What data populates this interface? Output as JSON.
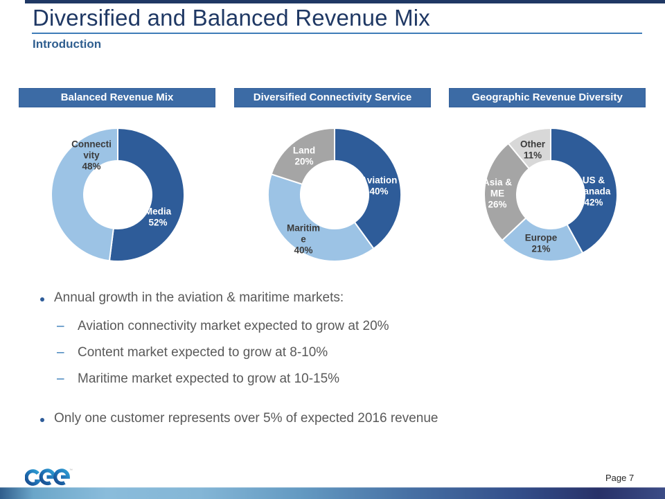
{
  "slide": {
    "title": "Diversified and Balanced Revenue Mix",
    "subtitle": "Introduction",
    "page_label": "Page 7",
    "logo_text": "Gee",
    "trademark": "™"
  },
  "panel_headers": [
    "Balanced Revenue Mix",
    "Diversified Connectivity Service",
    "Geographic Revenue Diversity"
  ],
  "bullets": {
    "dash_marker": "–",
    "b1": "Annual growth in the aviation & maritime markets:",
    "b1_sub": [
      "Aviation connectivity market expected to grow at 20%",
      "Content market expected to grow at 8-10%",
      "Maritime market expected to grow at 10-15%"
    ],
    "b2": "Only one customer represents over 5% of expected 2016 revenue"
  },
  "colors": {
    "title": "#1F3864",
    "subtitle": "#2F5E8F",
    "underline": "#3E7CB8",
    "header_bg": "#3C6BA5",
    "body_text": "#595959",
    "bullet_marker": "#2E5C99",
    "dark_blue": "#2E5C99",
    "light_blue": "#9CC3E5",
    "gray": "#A5A5A5",
    "light_gray": "#D8D8D8",
    "dark_label": "#3B3B3B"
  },
  "chart_data": [
    {
      "type": "pie",
      "donut": true,
      "title": "Balanced Revenue Mix",
      "legend_position": "none",
      "slices": [
        {
          "name": "Media",
          "value": 52,
          "color": "#2E5C99",
          "label_lines": [
            "Media",
            "52%"
          ],
          "label_color": "#FFFFFF",
          "label_pos": [
            58,
            32
          ]
        },
        {
          "name": "Connectivity",
          "value": 48,
          "color": "#9CC3E5",
          "label_lines": [
            "Connecti",
            "vity",
            "48%"
          ],
          "label_color": "#3B3B3B",
          "label_pos": [
            -38,
            -57
          ]
        }
      ]
    },
    {
      "type": "pie",
      "donut": true,
      "title": "Diversified Connectivity Service",
      "legend_position": "none",
      "slices": [
        {
          "name": "Aviation",
          "value": 40,
          "color": "#2E5C99",
          "label_lines": [
            "Aviation",
            "40%"
          ],
          "label_color": "#FFFFFF",
          "label_pos": [
            64,
            -13
          ]
        },
        {
          "name": "Maritime",
          "value": 40,
          "color": "#9CC3E5",
          "label_lines": [
            "Maritim",
            "e",
            "40%"
          ],
          "label_color": "#3B3B3B",
          "label_pos": [
            -45,
            64
          ]
        },
        {
          "name": "Land",
          "value": 20,
          "color": "#A5A5A5",
          "label_lines": [
            "Land",
            "20%"
          ],
          "label_color": "#FFFFFF",
          "label_pos": [
            -44,
            -56
          ]
        }
      ]
    },
    {
      "type": "pie",
      "donut": true,
      "title": "Geographic Revenue Diversity",
      "legend_position": "none",
      "slices": [
        {
          "name": "US & Canada",
          "value": 42,
          "color": "#2E5C99",
          "label_lines": [
            "US &",
            "Canada",
            "42%"
          ],
          "label_color": "#FFFFFF",
          "label_pos": [
            62,
            -5
          ]
        },
        {
          "name": "Europe",
          "value": 21,
          "color": "#9CC3E5",
          "label_lines": [
            "Europe",
            "21%"
          ],
          "label_color": "#3B3B3B",
          "label_pos": [
            -14,
            70
          ]
        },
        {
          "name": "Asia & ME",
          "value": 26,
          "color": "#A5A5A5",
          "label_lines": [
            "Asia &",
            "ME",
            "26%"
          ],
          "label_color": "#FFFFFF",
          "label_pos": [
            -77,
            -2
          ]
        },
        {
          "name": "Other",
          "value": 11,
          "color": "#D8D8D8",
          "label_lines": [
            "Other",
            "11%"
          ],
          "label_color": "#3B3B3B",
          "label_pos": [
            -26,
            -65
          ]
        }
      ]
    }
  ]
}
